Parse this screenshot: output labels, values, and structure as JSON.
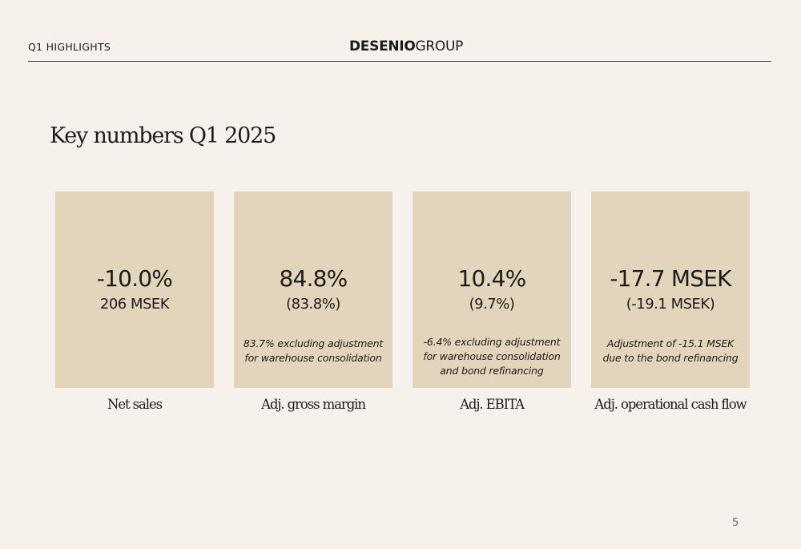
{
  "header": {
    "section_label": "Q1 HIGHLIGHTS",
    "logo_brand": "DESENIO",
    "logo_group": "GROUP"
  },
  "title": "Key numbers Q1 2025",
  "cards": [
    {
      "main": "-10.0%",
      "sub": "206 MSEK",
      "note": "",
      "label": "Net sales"
    },
    {
      "main": "84.8%",
      "sub": "(83.8%)",
      "note": "83.7% excluding adjustment\nfor warehouse consolidation",
      "label": "Adj. gross margin"
    },
    {
      "main": "10.4%",
      "sub": "(9.7%)",
      "note": "-6.4% excluding adjustment\nfor warehouse consolidation\nand bond refinancing",
      "label": "Adj. EBITA"
    },
    {
      "main": "-17.7 MSEK",
      "sub": "(-19.1 MSEK)",
      "note": "Adjustment of -15.1 MSEK\ndue to the bond refinancing",
      "label": "Adj. operational cash flow"
    }
  ],
  "page_number": "5",
  "colors": {
    "background": "#f6f2eb",
    "card": "#e3d5bc",
    "text": "#1c1c1c"
  }
}
